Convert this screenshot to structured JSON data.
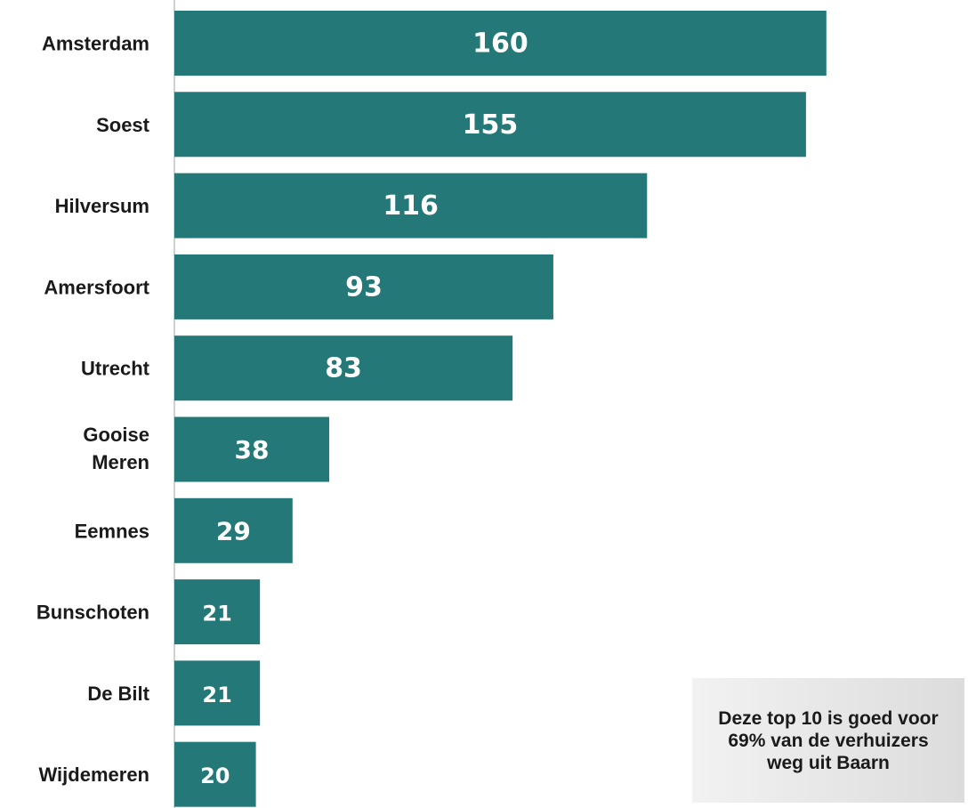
{
  "chart_data": {
    "type": "bar",
    "orientation": "horizontal",
    "categories": [
      "Amsterdam",
      "Soest",
      "Hilversum",
      "Amersfoort",
      "Utrecht",
      "Gooise Meren",
      "Eemnes",
      "Bunschoten",
      "De Bilt",
      "Wijdemeren"
    ],
    "values": [
      160,
      155,
      116,
      93,
      83,
      38,
      29,
      21,
      21,
      20
    ],
    "data_labels": [
      "160",
      "155",
      "116",
      "93",
      "83",
      "38",
      "29",
      "21",
      "21",
      "20"
    ],
    "xlim": [
      0,
      200
    ],
    "title": "",
    "xlabel": "",
    "ylabel": "",
    "bar_color": "#257878",
    "axis_color": "#d0d0d0",
    "grid": false,
    "legend": false
  },
  "note": {
    "text": "Deze top 10 is goed voor 69% van de verhuizers weg uit Baarn"
  }
}
